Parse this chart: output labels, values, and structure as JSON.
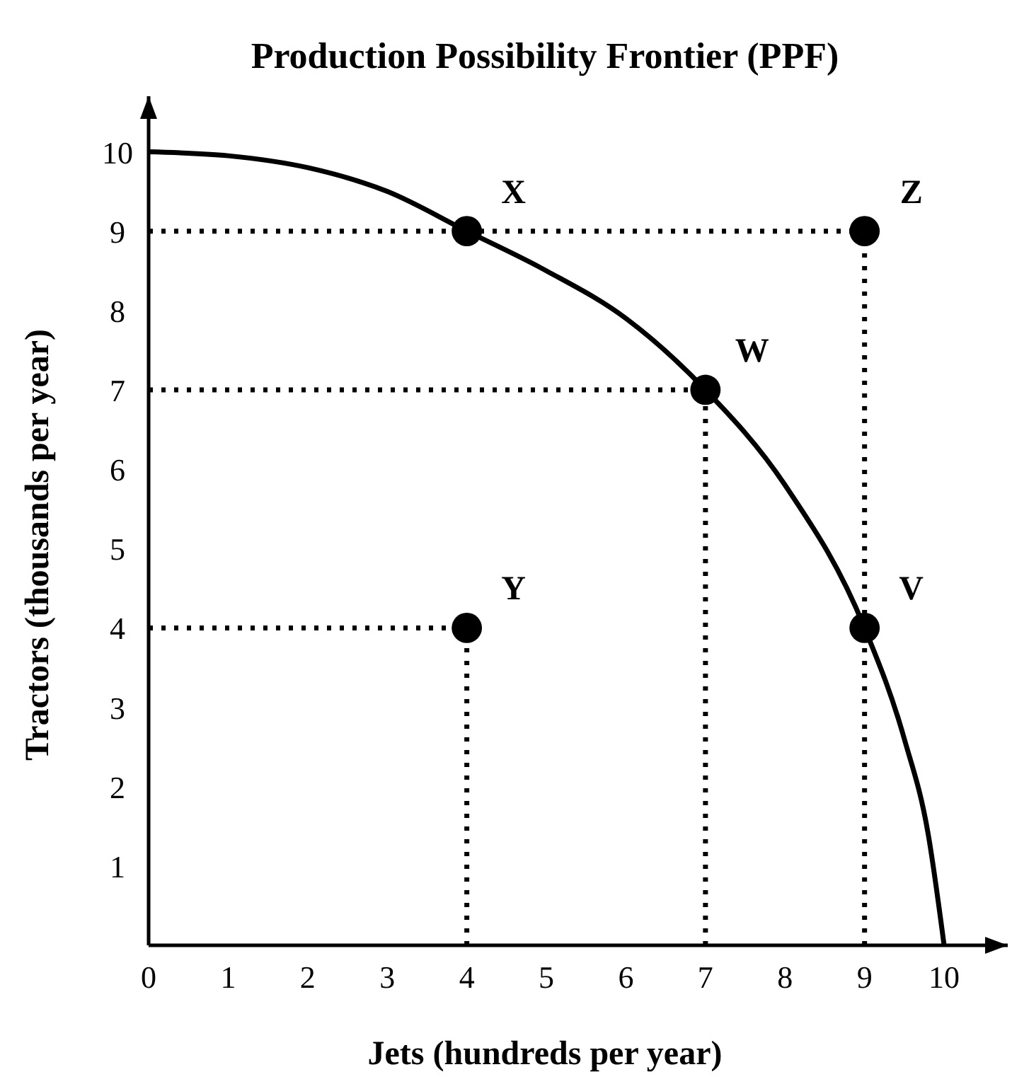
{
  "chart_data": {
    "type": "scatter",
    "title": "Production Possibility Frontier (PPF)",
    "xlabel": "Jets (hundreds per year)",
    "ylabel": "Tractors (thousands per year)",
    "xlim": [
      0,
      10.8
    ],
    "ylim": [
      0,
      10.7
    ],
    "xticks": [
      0,
      1,
      2,
      3,
      4,
      5,
      6,
      7,
      8,
      9,
      10
    ],
    "yticks": [
      1,
      2,
      3,
      4,
      5,
      6,
      7,
      8,
      9,
      10
    ],
    "grid": false,
    "series": [
      {
        "type": "line",
        "color": "#000000",
        "line_style": "solid",
        "x": [
          0,
          1,
          2,
          3,
          4,
          5,
          6,
          7,
          8,
          9,
          9.5,
          9.8,
          10
        ],
        "values": [
          10,
          9.95,
          9.8,
          9.5,
          9,
          8.5,
          7.9,
          7,
          5.8,
          4,
          2.6,
          1.4,
          0
        ]
      },
      {
        "type": "line",
        "color": "#000000",
        "line_style": "dotted",
        "x": [
          0,
          9
        ],
        "values": [
          9,
          9
        ]
      },
      {
        "type": "line",
        "color": "#000000",
        "line_style": "dotted",
        "x": [
          0,
          7
        ],
        "values": [
          7,
          7
        ]
      },
      {
        "type": "line",
        "color": "#000000",
        "line_style": "dotted",
        "x": [
          0,
          4
        ],
        "values": [
          4,
          4
        ]
      },
      {
        "type": "line",
        "color": "#000000",
        "line_style": "dotted",
        "x": [
          4,
          4
        ],
        "values": [
          0,
          4
        ]
      },
      {
        "type": "line",
        "color": "#000000",
        "line_style": "dotted",
        "x": [
          7,
          7
        ],
        "values": [
          0,
          7
        ]
      },
      {
        "type": "line",
        "color": "#000000",
        "line_style": "dotted",
        "x": [
          9,
          9
        ],
        "values": [
          0,
          9
        ]
      },
      {
        "color": "#000000",
        "marker": "circle",
        "x": [
          4,
          9,
          7,
          9,
          4
        ],
        "values": [
          9,
          9,
          7,
          4,
          4
        ]
      }
    ],
    "annotations": [
      {
        "text": "X",
        "x": 4,
        "y": 9
      },
      {
        "text": "Z",
        "x": 9,
        "y": 9
      },
      {
        "text": "W",
        "x": 7,
        "y": 7
      },
      {
        "text": "V",
        "x": 9,
        "y": 4
      },
      {
        "text": "Y",
        "x": 4,
        "y": 4
      }
    ]
  }
}
